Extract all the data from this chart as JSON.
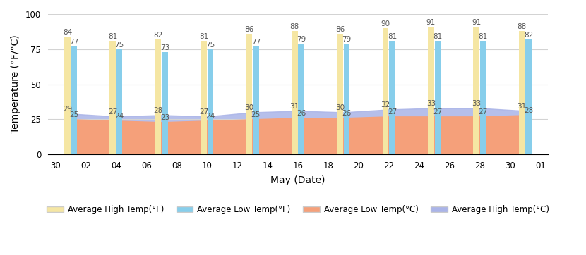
{
  "high_F_vals": [
    84,
    81,
    82,
    81,
    86,
    88,
    86,
    90,
    91,
    91,
    88
  ],
  "low_F_vals": [
    77,
    75,
    73,
    75,
    77,
    79,
    79,
    81,
    81,
    81,
    82
  ],
  "low_C_vals": [
    25,
    24,
    23,
    24,
    25,
    26,
    26,
    27,
    27,
    27,
    28
  ],
  "high_C_vals": [
    29,
    27,
    28,
    27,
    30,
    31,
    30,
    32,
    33,
    33,
    31
  ],
  "xtick_labels": [
    "30",
    "02",
    "04",
    "06",
    "08",
    "10",
    "12",
    "14",
    "16",
    "18",
    "20",
    "22",
    "24",
    "26",
    "28",
    "30",
    "01"
  ],
  "ylim": [
    0,
    100
  ],
  "yticks": [
    0,
    25,
    50,
    75,
    100
  ],
  "bar_color_high_F": "#f5e6a3",
  "bar_color_low_F": "#87ceeb",
  "area_color_high_C": "#aab4e8",
  "area_color_low_C": "#f5a07a",
  "xlabel": "May (Date)",
  "ylabel": "Temperature (°F/°C)",
  "legend_labels": [
    "Average High Temp(°F)",
    "Average Low Temp(°F)",
    "Average Low Temp(°C)",
    "Average High Temp(°C)"
  ],
  "legend_colors": [
    "#f5e6a3",
    "#87ceeb",
    "#f5a07a",
    "#aab4e8"
  ]
}
